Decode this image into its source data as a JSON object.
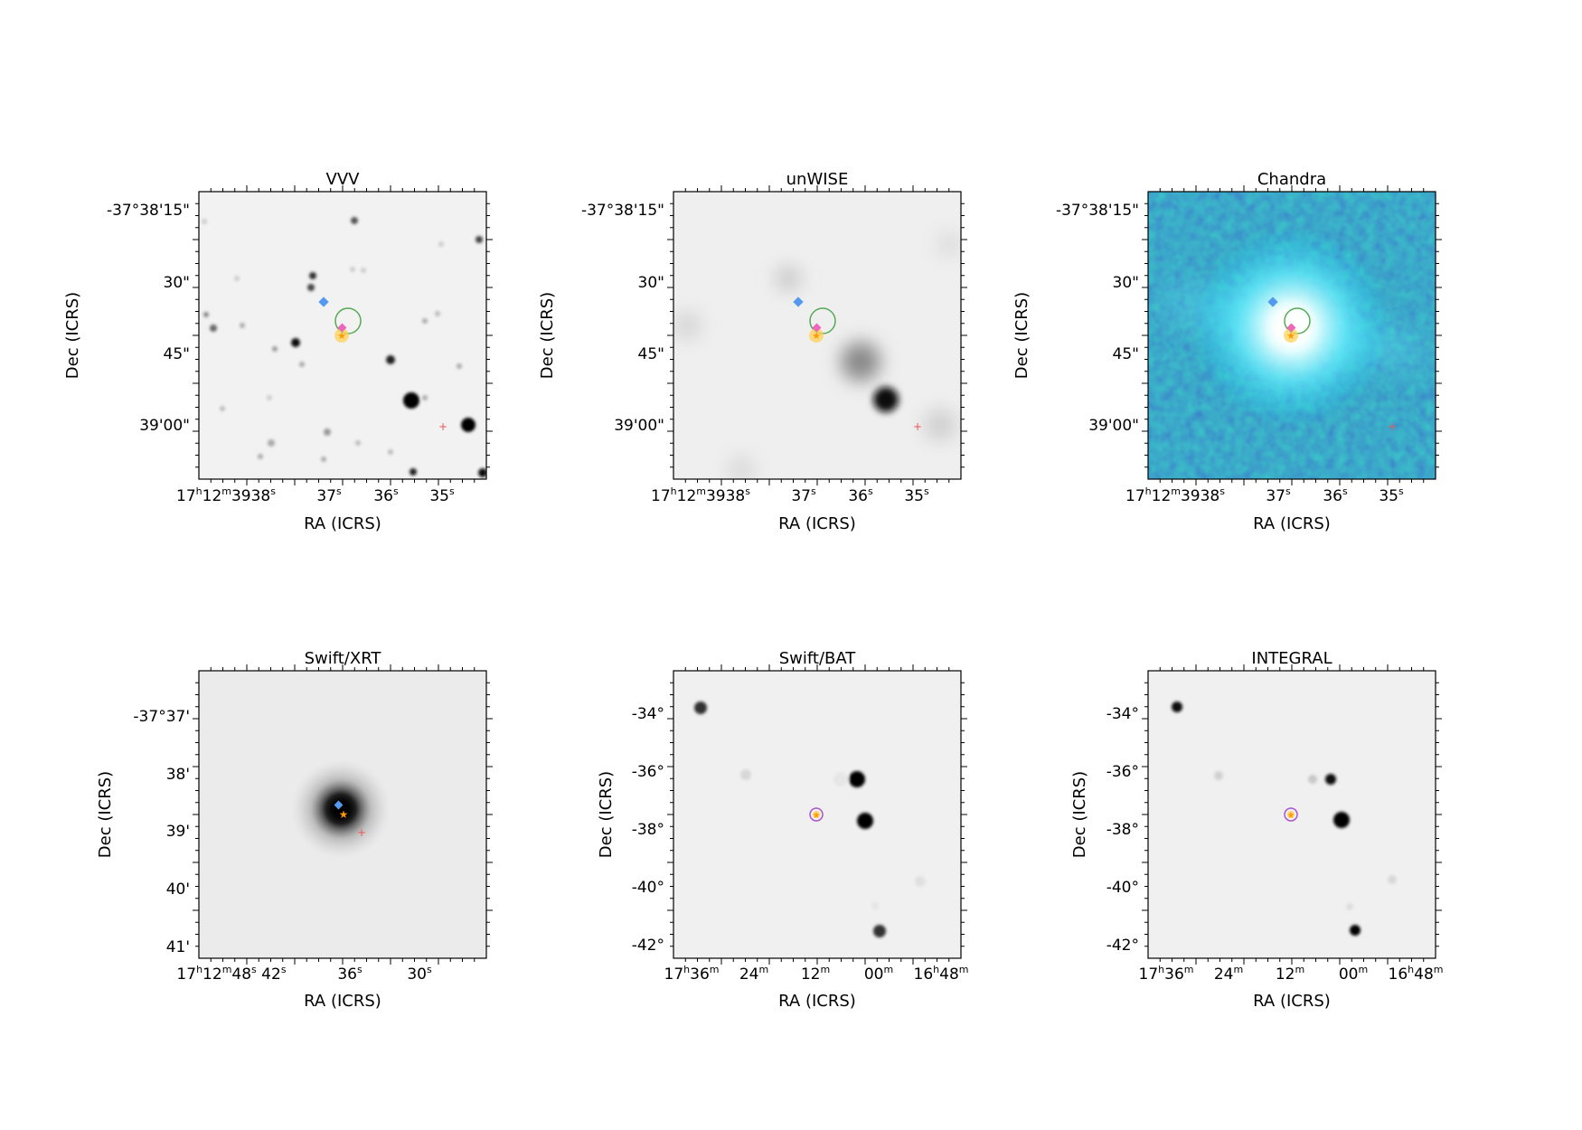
{
  "panels": [
    {
      "id": "vvv",
      "title": "VVV",
      "image": "grayscale",
      "xlabel": "RA (ICRS)",
      "ylabel": "Dec (ICRS)",
      "ra_ticks": [
        "17h12m3938s",
        "37s",
        "36s",
        "35s"
      ],
      "ra_ticks_display": [
        {
          "main": "17",
          "sup1": "h",
          "m2": "12",
          "sup2": "m",
          "rest": "3938",
          "sup3": "s"
        },
        {
          "main": "37",
          "sup1": "s"
        },
        {
          "main": "36",
          "sup1": "s"
        },
        {
          "main": "35",
          "sup1": "s"
        }
      ],
      "dec_ticks": [
        "-37°38'15\"",
        "30\"",
        "45\"",
        "39'00\""
      ]
    },
    {
      "id": "unwise",
      "title": "unWISE",
      "image": "grayscale-blurred",
      "xlabel": "RA (ICRS)",
      "ylabel": "Dec (ICRS)",
      "ra_ticks": [
        "17h12m3938s",
        "37s",
        "36s",
        "35s"
      ],
      "dec_ticks": [
        "-37°38'15\"",
        "30\"",
        "45\"",
        "39'00\""
      ]
    },
    {
      "id": "chandra",
      "title": "Chandra",
      "image": "cyan-blue",
      "xlabel": "RA (ICRS)",
      "ylabel": "Dec (ICRS)",
      "ra_ticks": [
        "17h12m3938s",
        "37s",
        "36s",
        "35s"
      ],
      "dec_ticks": [
        "-37°38'15\"",
        "30\"",
        "45\"",
        "39'00\""
      ]
    },
    {
      "id": "swift-xrt",
      "title": "Swift/XRT",
      "image": "grayscale",
      "xlabel": "RA (ICRS)",
      "ylabel": "Dec (ICRS)",
      "ra_ticks": [
        "17h12m48s 42s",
        "36s",
        "30s"
      ],
      "dec_ticks": [
        "-37°37'",
        "38'",
        "39'",
        "40'",
        "41'"
      ]
    },
    {
      "id": "swift-bat",
      "title": "Swift/BAT",
      "image": "grayscale",
      "xlabel": "RA (ICRS)",
      "ylabel": "Dec (ICRS)",
      "ra_ticks": [
        "17h36m",
        "24m",
        "12m",
        "00m",
        "16h48m"
      ],
      "dec_ticks": [
        "-34°",
        "-36°",
        "-38°",
        "-40°",
        "-42°"
      ]
    },
    {
      "id": "integral",
      "title": "INTEGRAL",
      "image": "grayscale",
      "xlabel": "RA (ICRS)",
      "ylabel": "Dec (ICRS)",
      "ra_ticks": [
        "17h36m",
        "24m",
        "12m",
        "00m",
        "16h48m"
      ],
      "dec_ticks": [
        "-34°",
        "-36°",
        "-38°",
        "-40°",
        "-42°"
      ]
    }
  ],
  "colors": {
    "marker_blue": "#5599ee",
    "marker_pink": "#ee66bb",
    "marker_orange": "#ffaa22",
    "marker_yellow_halo": "#ffd25a",
    "circle_green": "#55aa55",
    "cross_red": "#ee5555",
    "circle_purple": "#aa55cc"
  }
}
